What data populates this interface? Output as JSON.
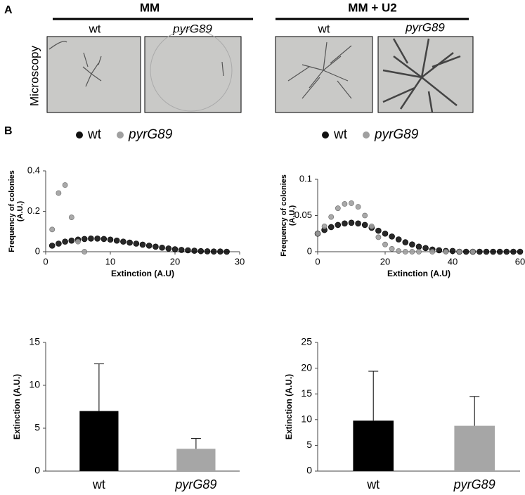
{
  "figure": {
    "panel_a": "A",
    "panel_b": "B",
    "microscopy": "Microscopy",
    "groups": [
      {
        "title": "MM",
        "samples": [
          "wt",
          "pyrG89"
        ]
      },
      {
        "title": "MM + U2",
        "samples": [
          "wt",
          "pyrG89"
        ]
      }
    ]
  },
  "chart_data": [
    {
      "type": "scatter",
      "xlabel": "Extinction (A.U)",
      "ylabel": [
        "Frequency of colonies",
        "(A.U.)"
      ],
      "xlim": [
        0,
        30
      ],
      "ylim": [
        0,
        0.4
      ],
      "xticks": [
        0,
        10,
        20,
        30
      ],
      "yticks": [
        0,
        0.2,
        0.4
      ],
      "series": [
        {
          "name": "wt",
          "color": "#111111",
          "x": [
            1,
            2,
            3,
            4,
            5,
            6,
            7,
            8,
            9,
            10,
            11,
            12,
            13,
            14,
            15,
            16,
            17,
            18,
            19,
            20,
            21,
            22,
            23,
            24,
            25,
            26,
            27,
            28
          ],
          "values": [
            0.03,
            0.04,
            0.05,
            0.055,
            0.06,
            0.063,
            0.065,
            0.065,
            0.063,
            0.06,
            0.055,
            0.05,
            0.045,
            0.04,
            0.035,
            0.03,
            0.025,
            0.02,
            0.016,
            0.012,
            0.009,
            0.007,
            0.005,
            0.003,
            0.002,
            0.001,
            0.001,
            0
          ]
        },
        {
          "name": "pyrG89",
          "color": "#a0a0a0",
          "x": [
            1,
            2,
            3,
            4,
            5,
            6
          ],
          "values": [
            0.11,
            0.29,
            0.33,
            0.17,
            0.05,
            0
          ]
        }
      ]
    },
    {
      "type": "scatter",
      "xlabel": "Extinction (A.U)",
      "ylabel": [
        "Frequency of colonies",
        "(A.U.)"
      ],
      "xlim": [
        0,
        60
      ],
      "ylim": [
        0,
        0.1
      ],
      "xticks": [
        0,
        20,
        40,
        60
      ],
      "yticks": [
        0,
        0.05,
        0.1
      ],
      "series": [
        {
          "name": "wt",
          "color": "#111111",
          "x": [
            0,
            2,
            4,
            6,
            8,
            10,
            12,
            14,
            16,
            18,
            20,
            22,
            24,
            26,
            28,
            30,
            32,
            34,
            36,
            38,
            40,
            42,
            44,
            46,
            48,
            50,
            52,
            54,
            56,
            58,
            60
          ],
          "values": [
            0.025,
            0.03,
            0.034,
            0.037,
            0.039,
            0.04,
            0.039,
            0.037,
            0.033,
            0.029,
            0.025,
            0.021,
            0.017,
            0.013,
            0.01,
            0.007,
            0.005,
            0.003,
            0.002,
            0.001,
            0.001,
            0,
            0,
            0,
            0,
            0,
            0,
            0,
            0,
            0,
            0
          ]
        },
        {
          "name": "pyrG89",
          "color": "#a0a0a0",
          "x": [
            0,
            2,
            4,
            6,
            8,
            10,
            12,
            14,
            16,
            18,
            20,
            22,
            24,
            26,
            28,
            30,
            34,
            38,
            42,
            46
          ],
          "values": [
            0.025,
            0.035,
            0.048,
            0.06,
            0.066,
            0.067,
            0.062,
            0.05,
            0.035,
            0.02,
            0.01,
            0.004,
            0.001,
            0,
            0,
            0,
            0,
            0,
            0,
            0
          ]
        }
      ]
    },
    {
      "type": "bar",
      "ylabel": "Extinction (A.U.)",
      "ylim": [
        0,
        15
      ],
      "yticks": [
        0,
        5,
        10,
        15
      ],
      "categories": [
        "wt",
        "pyrG89"
      ],
      "values": [
        7.0,
        2.6
      ],
      "errors": [
        5.5,
        1.2
      ],
      "colors": [
        "#000000",
        "#a6a6a6"
      ]
    },
    {
      "type": "bar",
      "ylabel": "Extinction (A.U.)",
      "ylim": [
        0,
        25
      ],
      "yticks": [
        0,
        5,
        10,
        15,
        20,
        25
      ],
      "categories": [
        "wt",
        "pyrG89"
      ],
      "values": [
        9.8,
        8.8
      ],
      "errors": [
        9.6,
        5.7
      ],
      "colors": [
        "#000000",
        "#a6a6a6"
      ]
    }
  ]
}
